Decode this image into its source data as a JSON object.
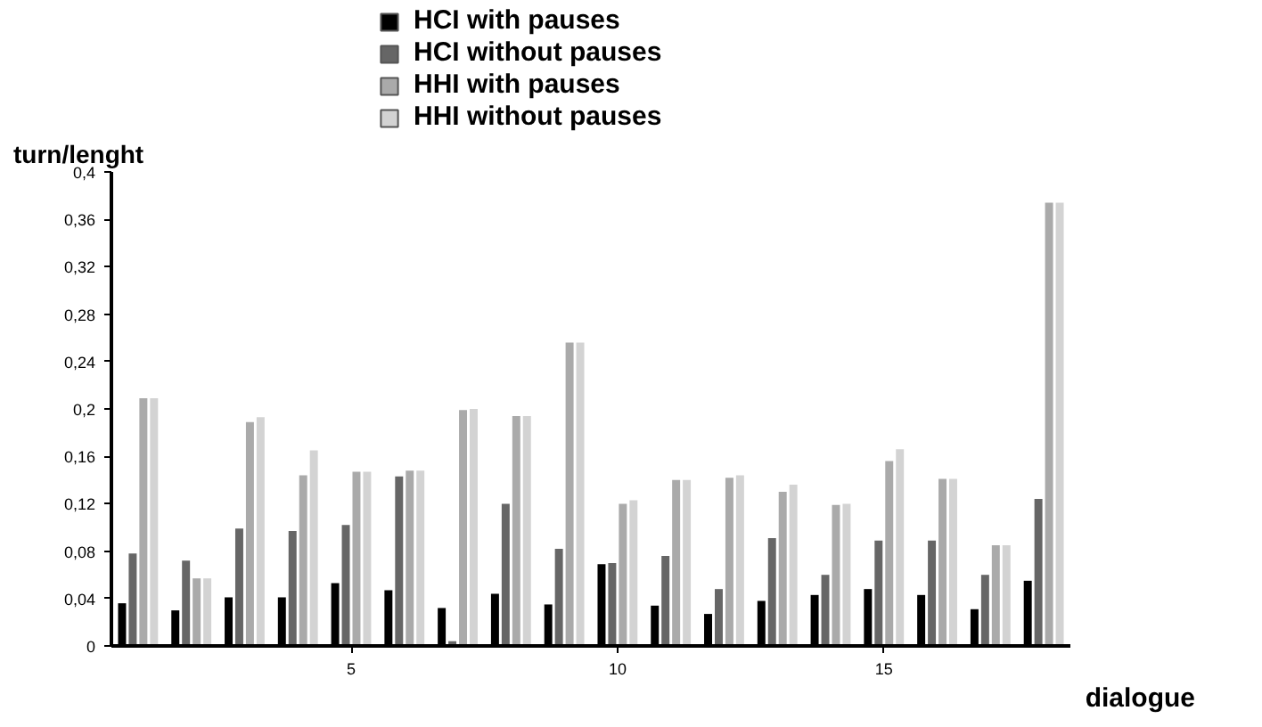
{
  "chart_data": {
    "type": "bar",
    "xlabel": "dialogue",
    "ylabel": "turn/lenght",
    "x": [
      1,
      2,
      3,
      4,
      5,
      6,
      7,
      8,
      9,
      10,
      11,
      12,
      13,
      14,
      15,
      16,
      17,
      18
    ],
    "xlim": [
      0.5,
      18.5
    ],
    "xticks": [
      5,
      10,
      15
    ],
    "ylim": [
      0,
      0.4
    ],
    "yticks": [
      {
        "value": 0,
        "label": "0"
      },
      {
        "value": 0.04,
        "label": "0,04"
      },
      {
        "value": 0.08,
        "label": "0,08"
      },
      {
        "value": 0.12,
        "label": "0,12"
      },
      {
        "value": 0.16,
        "label": "0,16"
      },
      {
        "value": 0.2,
        "label": "0,2"
      },
      {
        "value": 0.24,
        "label": "0,24"
      },
      {
        "value": 0.28,
        "label": "0,28"
      },
      {
        "value": 0.32,
        "label": "0,32"
      },
      {
        "value": 0.36,
        "label": "0,36"
      },
      {
        "value": 0.4,
        "label": "0,4"
      }
    ],
    "grid": false,
    "legend": "top",
    "series": [
      {
        "name": "HCI with pauses",
        "color": "#000000",
        "values": [
          0.036,
          0.03,
          0.041,
          0.041,
          0.053,
          0.047,
          0.032,
          0.044,
          0.035,
          0.069,
          0.034,
          0.027,
          0.038,
          0.043,
          0.048,
          0.043,
          0.031,
          0.055
        ]
      },
      {
        "name": "HCI without pauses",
        "color": "#666666",
        "values": [
          0.078,
          0.072,
          0.099,
          0.097,
          0.102,
          0.143,
          0.004,
          0.12,
          0.082,
          0.07,
          0.076,
          0.048,
          0.091,
          0.06,
          0.089,
          0.089,
          0.06,
          0.124
        ]
      },
      {
        "name": "HHI with pauses",
        "color": "#aaaaaa",
        "values": [
          0.209,
          0.057,
          0.189,
          0.144,
          0.147,
          0.148,
          0.199,
          0.194,
          0.256,
          0.12,
          0.14,
          0.142,
          0.13,
          0.119,
          0.156,
          0.141,
          0.085,
          0.374
        ]
      },
      {
        "name": "HHI without pauses",
        "color": "#d3d3d3",
        "values": [
          0.209,
          0.057,
          0.193,
          0.165,
          0.147,
          0.148,
          0.2,
          0.194,
          0.256,
          0.123,
          0.14,
          0.144,
          0.136,
          0.12,
          0.166,
          0.141,
          0.085,
          0.374
        ]
      }
    ]
  }
}
